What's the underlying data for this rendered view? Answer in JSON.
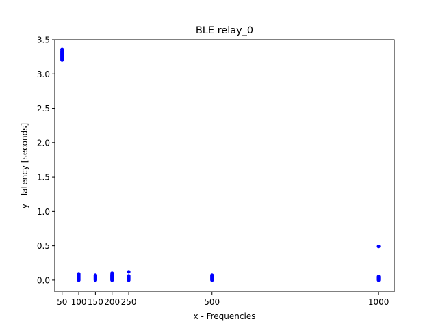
{
  "chart_data": {
    "type": "scatter",
    "title": "BLE relay_0",
    "xlabel": "x - Frequencies",
    "ylabel": "y - latency [seconds]",
    "xlim": [
      28,
      1047
    ],
    "ylim": [
      -0.17,
      3.5
    ],
    "xticks": [
      50,
      100,
      150,
      200,
      250,
      500,
      1000
    ],
    "xtick_labels": [
      "50",
      "100",
      "150",
      "200",
      "250",
      "500",
      "1000"
    ],
    "yticks": [
      0.0,
      0.5,
      1.0,
      1.5,
      2.0,
      2.5,
      3.0,
      3.5
    ],
    "ytick_labels": [
      "0.0",
      "0.5",
      "1.0",
      "1.5",
      "2.0",
      "2.5",
      "3.0",
      "3.5"
    ],
    "grid": false,
    "marker_color": "#0000ff",
    "series": [
      {
        "x": [
          50,
          50,
          50,
          50,
          50,
          50,
          50,
          50,
          50,
          50,
          50,
          50,
          50,
          50,
          50,
          50,
          100,
          100,
          100,
          100,
          100,
          100,
          100,
          100,
          100,
          100,
          150,
          150,
          150,
          150,
          150,
          150,
          150,
          150,
          200,
          200,
          200,
          200,
          200,
          200,
          200,
          200,
          200,
          200,
          250,
          250,
          250,
          250,
          250,
          250,
          250,
          250,
          500,
          500,
          500,
          500,
          500,
          500,
          500,
          500,
          1000,
          1000,
          1000,
          1000,
          1000,
          1000,
          1000
        ],
        "y": [
          3.2,
          3.21,
          3.22,
          3.23,
          3.24,
          3.25,
          3.26,
          3.27,
          3.28,
          3.29,
          3.3,
          3.31,
          3.32,
          3.33,
          3.35,
          3.36,
          0.0,
          0.01,
          0.02,
          0.03,
          0.04,
          0.05,
          0.06,
          0.07,
          0.08,
          0.09,
          0.0,
          0.01,
          0.02,
          0.03,
          0.04,
          0.05,
          0.06,
          0.07,
          0.0,
          0.01,
          0.02,
          0.03,
          0.04,
          0.05,
          0.06,
          0.07,
          0.08,
          0.1,
          0.0,
          0.01,
          0.02,
          0.03,
          0.04,
          0.05,
          0.06,
          0.12,
          0.0,
          0.01,
          0.02,
          0.03,
          0.04,
          0.05,
          0.06,
          0.07,
          0.0,
          0.01,
          0.02,
          0.03,
          0.04,
          0.05,
          0.49
        ]
      }
    ]
  }
}
